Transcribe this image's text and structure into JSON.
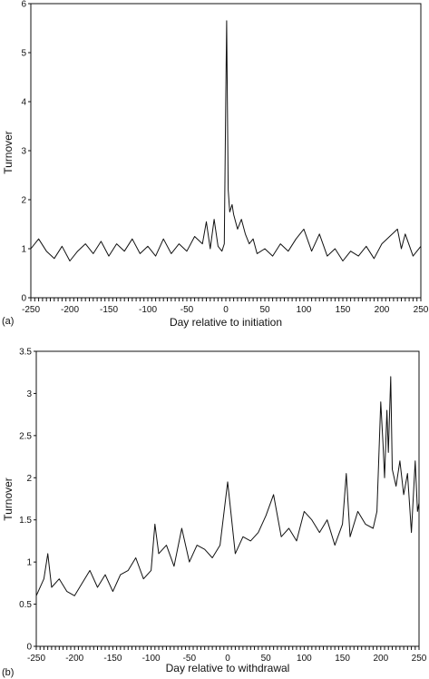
{
  "chart_data": [
    {
      "panel_label": "(a)",
      "type": "line",
      "xlabel": "Day relative to initiation",
      "ylabel": "Turnover",
      "xlim": [
        -250,
        250
      ],
      "ylim": [
        0,
        6
      ],
      "xticks": [
        "-250",
        "-200",
        "-150",
        "-100",
        "-50",
        "0",
        "50",
        "100",
        "150",
        "200",
        "250"
      ],
      "yticks": [
        "0",
        "1",
        "2",
        "3",
        "4",
        "5",
        "6"
      ],
      "grid": false,
      "x": [
        -250,
        -240,
        -230,
        -220,
        -210,
        -200,
        -190,
        -180,
        -170,
        -160,
        -150,
        -140,
        -130,
        -120,
        -110,
        -100,
        -90,
        -80,
        -70,
        -60,
        -50,
        -40,
        -30,
        -25,
        -20,
        -15,
        -10,
        -5,
        -2,
        0,
        1,
        2,
        3,
        5,
        8,
        10,
        15,
        20,
        25,
        30,
        35,
        40,
        50,
        60,
        70,
        80,
        90,
        100,
        110,
        120,
        130,
        140,
        150,
        160,
        170,
        180,
        190,
        200,
        210,
        220,
        225,
        230,
        240,
        250
      ],
      "values": [
        1.0,
        1.2,
        0.95,
        0.8,
        1.05,
        0.75,
        0.95,
        1.1,
        0.9,
        1.15,
        0.85,
        1.1,
        0.95,
        1.2,
        0.9,
        1.05,
        0.85,
        1.2,
        0.9,
        1.1,
        0.95,
        1.25,
        1.1,
        1.55,
        1.0,
        1.6,
        1.05,
        0.95,
        1.1,
        4.2,
        5.65,
        4.0,
        2.2,
        1.75,
        1.9,
        1.7,
        1.4,
        1.6,
        1.3,
        1.1,
        1.2,
        0.9,
        1.0,
        0.85,
        1.1,
        0.95,
        1.2,
        1.4,
        0.95,
        1.3,
        0.85,
        1.0,
        0.75,
        0.95,
        0.85,
        1.05,
        0.8,
        1.1,
        1.25,
        1.4,
        1.0,
        1.3,
        0.85,
        1.05
      ]
    },
    {
      "panel_label": "(b)",
      "type": "line",
      "xlabel": "Day relative to withdrawal",
      "ylabel": "Turnover",
      "xlim": [
        -250,
        250
      ],
      "ylim": [
        0,
        3.5
      ],
      "xticks": [
        "-250",
        "-200",
        "-150",
        "-100",
        "-50",
        "0",
        "50",
        "100",
        "150",
        "200",
        "250"
      ],
      "yticks": [
        "0",
        "0.5",
        "1",
        "1.5",
        "2",
        "2.5",
        "3",
        "3.5"
      ],
      "grid": false,
      "x": [
        -250,
        -240,
        -235,
        -230,
        -220,
        -210,
        -200,
        -190,
        -180,
        -170,
        -160,
        -150,
        -140,
        -130,
        -120,
        -110,
        -100,
        -95,
        -90,
        -80,
        -70,
        -60,
        -50,
        -40,
        -30,
        -20,
        -10,
        0,
        10,
        20,
        30,
        40,
        50,
        60,
        70,
        80,
        90,
        100,
        110,
        120,
        130,
        140,
        150,
        155,
        160,
        170,
        180,
        190,
        195,
        200,
        203,
        205,
        208,
        210,
        213,
        215,
        220,
        225,
        230,
        235,
        240,
        245,
        248,
        250
      ],
      "values": [
        0.6,
        0.8,
        1.1,
        0.7,
        0.8,
        0.65,
        0.6,
        0.75,
        0.9,
        0.7,
        0.85,
        0.65,
        0.85,
        0.9,
        1.05,
        0.8,
        0.9,
        1.45,
        1.1,
        1.2,
        0.95,
        1.4,
        1.0,
        1.2,
        1.15,
        1.05,
        1.2,
        1.95,
        1.1,
        1.3,
        1.25,
        1.35,
        1.55,
        1.8,
        1.3,
        1.4,
        1.25,
        1.6,
        1.5,
        1.35,
        1.5,
        1.2,
        1.45,
        2.05,
        1.3,
        1.6,
        1.45,
        1.4,
        1.6,
        2.9,
        2.4,
        2.0,
        2.8,
        2.3,
        3.2,
        2.1,
        1.9,
        2.2,
        1.8,
        2.05,
        1.35,
        2.2,
        1.6,
        1.7
      ]
    }
  ]
}
